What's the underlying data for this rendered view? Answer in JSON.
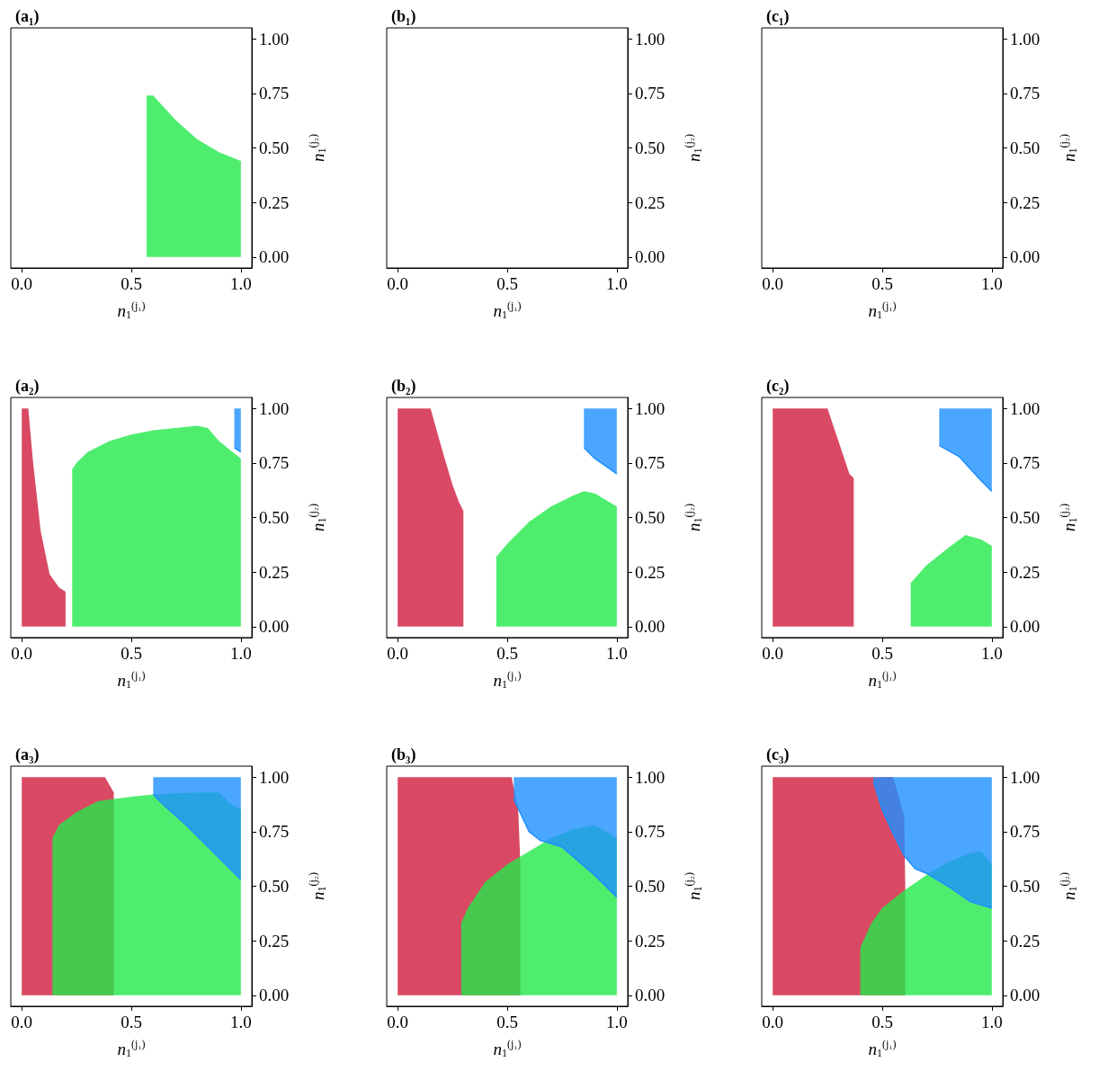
{
  "chart_data": [
    {
      "type": "area",
      "title": "(a₁)",
      "xlabel": "n$_{1}$$^{(j₁)}$",
      "ylabel": "n$_{1}$$^{(j₂)}$",
      "xlim": [
        -0.05,
        1.05
      ],
      "ylim": [
        -0.05,
        1.05
      ],
      "xticks": [
        {
          "value": 0,
          "label": "0.0"
        },
        {
          "value": 0.5,
          "label": "0.5"
        },
        {
          "value": 1,
          "label": "1.0"
        }
      ],
      "yticks": [
        {
          "value": 0,
          "label": "0.00"
        },
        {
          "value": 0.25,
          "label": "0.25"
        },
        {
          "value": 0.5,
          "label": "0.50"
        },
        {
          "value": 0.75,
          "label": "0.75"
        },
        {
          "value": 1,
          "label": "1.00"
        }
      ],
      "series": [
        {
          "color": "#22e84a",
          "x": [
            0.57,
            0.6,
            0.7,
            0.8,
            0.9,
            1.0
          ],
          "values": [
            0.74,
            0.74,
            0.63,
            0.54,
            0.48,
            0.44
          ]
        }
      ]
    },
    {
      "type": "area",
      "title": "(b₁)",
      "xlabel": "n$_{1}$$^{(j₁)}$",
      "ylabel": "n$_{1}$$^{(j₂)}$",
      "xlim": [
        -0.05,
        1.05
      ],
      "ylim": [
        -0.05,
        1.05
      ],
      "xticks": [
        {
          "value": 0,
          "label": "0.0"
        },
        {
          "value": 0.5,
          "label": "0.5"
        },
        {
          "value": 1,
          "label": "1.0"
        }
      ],
      "yticks": [
        {
          "value": 0,
          "label": "0.00"
        },
        {
          "value": 0.25,
          "label": "0.25"
        },
        {
          "value": 0.5,
          "label": "0.50"
        },
        {
          "value": 0.75,
          "label": "0.75"
        },
        {
          "value": 1,
          "label": "1.00"
        }
      ]
    },
    {
      "type": "area",
      "title": "(c₁)",
      "xlabel": "n$_{1}$$^{(j₁)}$",
      "ylabel": "n$_{1}$$^{(j₂)}$",
      "xlim": [
        -0.05,
        1.05
      ],
      "ylim": [
        -0.05,
        1.05
      ],
      "xticks": [
        {
          "value": 0,
          "label": "0.0"
        },
        {
          "value": 0.5,
          "label": "0.5"
        },
        {
          "value": 1,
          "label": "1.0"
        }
      ],
      "yticks": [
        {
          "value": 0,
          "label": "0.00"
        },
        {
          "value": 0.25,
          "label": "0.25"
        },
        {
          "value": 0.5,
          "label": "0.50"
        },
        {
          "value": 0.75,
          "label": "0.75"
        },
        {
          "value": 1,
          "label": "1.00"
        }
      ]
    },
    {
      "type": "area",
      "title": "(a₂)",
      "xlabel": "n$_{1}$$^{(j₁)}$",
      "ylabel": "n$_{1}$$^{(j₂)}$",
      "xlim": [
        -0.05,
        1.05
      ],
      "ylim": [
        -0.05,
        1.05
      ],
      "xticks": [
        {
          "value": 0,
          "label": "0.0"
        },
        {
          "value": 0.5,
          "label": "0.5"
        },
        {
          "value": 1,
          "label": "1.0"
        }
      ],
      "yticks": [
        {
          "value": 0,
          "label": "0.00"
        },
        {
          "value": 0.25,
          "label": "0.25"
        },
        {
          "value": 0.5,
          "label": "0.50"
        },
        {
          "value": 0.75,
          "label": "0.75"
        },
        {
          "value": 1,
          "label": "1.00"
        }
      ],
      "series": [
        {
          "color": "#d01c3c",
          "x": [
            0,
            0.03,
            0.05,
            0.086,
            0.127,
            0.17,
            0.2
          ],
          "values": [
            1.0,
            1.0,
            0.77,
            0.44,
            0.24,
            0.18,
            0.16
          ]
        },
        {
          "color": "#22e84a",
          "x": [
            0.23,
            0.25,
            0.3,
            0.4,
            0.5,
            0.6,
            0.7,
            0.8,
            0.85,
            0.9,
            1.0
          ],
          "values": [
            0.72,
            0.75,
            0.8,
            0.85,
            0.88,
            0.9,
            0.91,
            0.92,
            0.91,
            0.85,
            0.77
          ]
        },
        {
          "type": "line",
          "color": "#1e90ff",
          "x": [
            0.97,
            1.0
          ],
          "values": [
            0.82,
            0.8
          ],
          "lower": [
            0.82,
            0.8
          ],
          "upper": [
            1.0,
            1.0
          ]
        }
      ]
    },
    {
      "type": "area",
      "title": "(b₂)",
      "xlabel": "n$_{1}$$^{(j₁)}$",
      "ylabel": "n$_{1}$$^{(j₂)}$",
      "xlim": [
        -0.05,
        1.05
      ],
      "ylim": [
        -0.05,
        1.05
      ],
      "xticks": [
        {
          "value": 0,
          "label": "0.0"
        },
        {
          "value": 0.5,
          "label": "0.5"
        },
        {
          "value": 1,
          "label": "1.0"
        }
      ],
      "yticks": [
        {
          "value": 0,
          "label": "0.00"
        },
        {
          "value": 0.25,
          "label": "0.25"
        },
        {
          "value": 0.5,
          "label": "0.50"
        },
        {
          "value": 0.75,
          "label": "0.75"
        },
        {
          "value": 1,
          "label": "1.00"
        }
      ],
      "series": [
        {
          "color": "#d01c3c",
          "x": [
            0,
            0.15,
            0.2,
            0.25,
            0.28,
            0.3
          ],
          "values": [
            1.0,
            1.0,
            0.82,
            0.65,
            0.57,
            0.53
          ]
        },
        {
          "color": "#22e84a",
          "x": [
            0.45,
            0.5,
            0.6,
            0.7,
            0.8,
            0.85,
            0.9,
            1.0
          ],
          "values": [
            0.32,
            0.38,
            0.48,
            0.55,
            0.6,
            0.62,
            0.61,
            0.55
          ]
        },
        {
          "type": "line",
          "color": "#1e90ff",
          "x": [
            0.85,
            0.9,
            1.0
          ],
          "values": [
            0.82,
            0.77,
            0.7
          ],
          "lower": [
            0.82,
            0.77,
            0.7
          ],
          "upper": [
            1.0,
            1.0,
            1.0
          ]
        }
      ]
    },
    {
      "type": "area",
      "title": "(c₂)",
      "xlabel": "n$_{1}$$^{(j₁)}$",
      "ylabel": "n$_{1}$$^{(j₂)}$",
      "xlim": [
        -0.05,
        1.05
      ],
      "ylim": [
        -0.05,
        1.05
      ],
      "xticks": [
        {
          "value": 0,
          "label": "0.0"
        },
        {
          "value": 0.5,
          "label": "0.5"
        },
        {
          "value": 1,
          "label": "1.0"
        }
      ],
      "yticks": [
        {
          "value": 0,
          "label": "0.00"
        },
        {
          "value": 0.25,
          "label": "0.25"
        },
        {
          "value": 0.5,
          "label": "0.50"
        },
        {
          "value": 0.75,
          "label": "0.75"
        },
        {
          "value": 1,
          "label": "1.00"
        }
      ],
      "series": [
        {
          "color": "#d01c3c",
          "x": [
            0,
            0.25,
            0.3,
            0.35,
            0.37
          ],
          "values": [
            1.0,
            1.0,
            0.85,
            0.7,
            0.68
          ]
        },
        {
          "color": "#22e84a",
          "x": [
            0.63,
            0.7,
            0.8,
            0.88,
            0.95,
            1.0
          ],
          "values": [
            0.2,
            0.28,
            0.36,
            0.42,
            0.4,
            0.37
          ]
        },
        {
          "type": "line",
          "color": "#1e90ff",
          "x": [
            0.76,
            0.85,
            0.95,
            1.0
          ],
          "values": [
            0.83,
            0.78,
            0.67,
            0.62
          ],
          "lower": [
            0.83,
            0.78,
            0.67,
            0.62
          ],
          "upper": [
            1.0,
            1.0,
            1.0,
            1.0
          ]
        }
      ]
    },
    {
      "type": "area",
      "title": "(a₃)",
      "xlabel": "n$_{1}$$^{(j₁)}$",
      "ylabel": "n$_{1}$$^{(j₂)}$",
      "xlim": [
        -0.05,
        1.05
      ],
      "ylim": [
        -0.05,
        1.05
      ],
      "xticks": [
        {
          "value": 0,
          "label": "0.0"
        },
        {
          "value": 0.5,
          "label": "0.5"
        },
        {
          "value": 1,
          "label": "1.0"
        }
      ],
      "yticks": [
        {
          "value": 0,
          "label": "0.00"
        },
        {
          "value": 0.25,
          "label": "0.25"
        },
        {
          "value": 0.5,
          "label": "0.50"
        },
        {
          "value": 0.75,
          "label": "0.75"
        },
        {
          "value": 1,
          "label": "1.00"
        }
      ],
      "series": [
        {
          "color": "#d01c3c",
          "x": [
            0,
            0.38,
            0.42
          ],
          "values": [
            1.0,
            1.0,
            0.93
          ]
        },
        {
          "color": "#22e84a",
          "x": [
            0.14,
            0.17,
            0.25,
            0.35,
            0.5,
            0.6,
            0.8,
            0.9,
            0.95,
            1.0
          ],
          "values": [
            0.72,
            0.78,
            0.84,
            0.89,
            0.91,
            0.92,
            0.93,
            0.93,
            0.88,
            0.85
          ]
        },
        {
          "type": "line",
          "color": "#1e90ff",
          "x": [
            0.6,
            0.65,
            0.75,
            0.85,
            0.95,
            1.0
          ],
          "values": [
            0.92,
            0.87,
            0.78,
            0.68,
            0.58,
            0.53
          ],
          "lower": [
            0.92,
            0.87,
            0.78,
            0.68,
            0.58,
            0.53
          ],
          "upper": [
            1.0,
            1.0,
            1.0,
            1.0,
            1.0,
            1.0
          ]
        }
      ]
    },
    {
      "type": "area",
      "title": "(b₃)",
      "xlabel": "n$_{1}$$^{(j₁)}$",
      "ylabel": "n$_{1}$$^{(j₂)}$",
      "xlim": [
        -0.05,
        1.05
      ],
      "ylim": [
        -0.05,
        1.05
      ],
      "xticks": [
        {
          "value": 0,
          "label": "0.0"
        },
        {
          "value": 0.5,
          "label": "0.5"
        },
        {
          "value": 1,
          "label": "1.0"
        }
      ],
      "yticks": [
        {
          "value": 0,
          "label": "0.00"
        },
        {
          "value": 0.25,
          "label": "0.25"
        },
        {
          "value": 0.5,
          "label": "0.50"
        },
        {
          "value": 0.75,
          "label": "0.75"
        },
        {
          "value": 1,
          "label": "1.00"
        }
      ],
      "series": [
        {
          "color": "#d01c3c",
          "x": [
            0,
            0.52,
            0.55,
            0.56
          ],
          "values": [
            1.0,
            1.0,
            0.85,
            0.6
          ]
        },
        {
          "color": "#22e84a",
          "x": [
            0.29,
            0.32,
            0.4,
            0.5,
            0.6,
            0.7,
            0.8,
            0.9,
            1.0
          ],
          "values": [
            0.33,
            0.4,
            0.52,
            0.6,
            0.66,
            0.72,
            0.76,
            0.78,
            0.72
          ]
        },
        {
          "type": "line",
          "color": "#1e90ff",
          "x": [
            0.53,
            0.6,
            0.65,
            0.75,
            0.9,
            1.0
          ],
          "values": [
            0.9,
            0.75,
            0.71,
            0.68,
            0.55,
            0.45
          ],
          "lower": [
            0.9,
            0.75,
            0.71,
            0.68,
            0.55,
            0.45
          ],
          "upper": [
            1.0,
            1.0,
            1.0,
            1.0,
            1.0,
            1.0
          ]
        }
      ]
    },
    {
      "type": "area",
      "title": "(c₃)",
      "xlabel": "n$_{1}$$^{(j₁)}$",
      "ylabel": "n$_{1}$$^{(j₂)}$",
      "xlim": [
        -0.05,
        1.05
      ],
      "ylim": [
        -0.05,
        1.05
      ],
      "xticks": [
        {
          "value": 0,
          "label": "0.0"
        },
        {
          "value": 0.5,
          "label": "0.5"
        },
        {
          "value": 1,
          "label": "1.0"
        }
      ],
      "yticks": [
        {
          "value": 0,
          "label": "0.00"
        },
        {
          "value": 0.25,
          "label": "0.25"
        },
        {
          "value": 0.5,
          "label": "0.50"
        },
        {
          "value": 0.75,
          "label": "0.75"
        },
        {
          "value": 1,
          "label": "1.00"
        }
      ],
      "series": [
        {
          "color": "#d01c3c",
          "x": [
            0,
            0.55,
            0.6,
            0.605
          ],
          "values": [
            1.0,
            1.0,
            0.82,
            0.5
          ]
        },
        {
          "color": "#22e84a",
          "x": [
            0.4,
            0.45,
            0.5,
            0.6,
            0.7,
            0.8,
            0.9,
            0.95,
            1.0
          ],
          "values": [
            0.22,
            0.33,
            0.4,
            0.48,
            0.55,
            0.61,
            0.65,
            0.66,
            0.6
          ]
        },
        {
          "type": "line",
          "color": "#1e90ff",
          "x": [
            0.46,
            0.5,
            0.55,
            0.6,
            0.65,
            0.7,
            0.8,
            0.9,
            1.0
          ],
          "values": [
            0.98,
            0.85,
            0.74,
            0.64,
            0.58,
            0.56,
            0.5,
            0.43,
            0.4
          ],
          "lower": [
            0.98,
            0.85,
            0.74,
            0.64,
            0.58,
            0.56,
            0.5,
            0.43,
            0.4
          ],
          "upper": [
            1.0,
            1.0,
            1.0,
            1.0,
            1.0,
            1.0,
            1.0,
            1.0,
            1.0
          ]
        }
      ]
    }
  ]
}
